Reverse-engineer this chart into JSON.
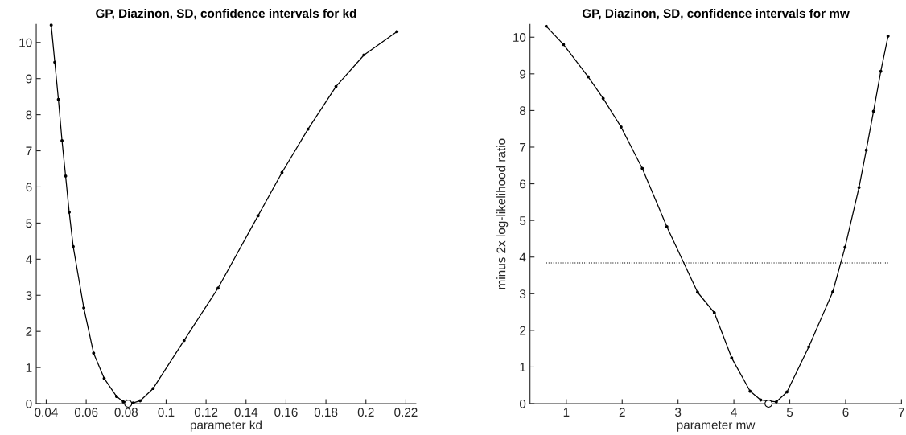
{
  "chart_data": [
    {
      "type": "line",
      "title": "GP, Diazinon, SD, confidence intervals for kd",
      "xlabel": "parameter kd",
      "xlim": [
        0.035,
        0.225
      ],
      "ylim": [
        0,
        10.5
      ],
      "xticks": [
        0.04,
        0.06,
        0.08,
        0.1,
        0.12,
        0.14,
        0.16,
        0.18,
        0.2,
        0.22
      ],
      "yticks": [
        0,
        1,
        2,
        3,
        4,
        5,
        6,
        7,
        8,
        9,
        10
      ],
      "marker": "circle",
      "line_style": "solid",
      "grid": false,
      "legend": false,
      "series": [
        {
          "color": "#000000",
          "x": [
            0.0425,
            0.0443,
            0.0461,
            0.0479,
            0.0497,
            0.0515,
            0.0535,
            0.0588,
            0.0637,
            0.069,
            0.0752,
            0.0786,
            0.0835,
            0.087,
            0.0935,
            0.109,
            0.126,
            0.146,
            0.158,
            0.171,
            0.185,
            0.199,
            0.2155
          ],
          "values": [
            10.48,
            9.45,
            8.42,
            7.28,
            6.3,
            5.3,
            4.35,
            2.65,
            1.4,
            0.7,
            0.2,
            0.05,
            0.02,
            0.08,
            0.42,
            1.75,
            3.2,
            5.2,
            6.4,
            7.6,
            8.78,
            9.65,
            10.3
          ]
        },
        {
          "type": "scatter",
          "color": "#000000",
          "x": [
            0.081
          ],
          "values": [
            0
          ]
        }
      ],
      "ref_lines": [
        {
          "axis": "y",
          "value": 3.84,
          "line_style": "dotted",
          "color": "#000000"
        }
      ]
    },
    {
      "type": "line",
      "title": "GP, Diazinon, SD, confidence intervals for mw",
      "xlabel": "parameter mw",
      "ylabel": "minus 2x log-likelihood ratio",
      "xlim": [
        0.35,
        7.0
      ],
      "ylim": [
        0,
        10.35
      ],
      "xticks": [
        1,
        2,
        3,
        4,
        5,
        6,
        7
      ],
      "yticks": [
        0,
        1,
        2,
        3,
        4,
        5,
        6,
        7,
        8,
        9,
        10
      ],
      "marker": "circle",
      "line_style": "solid",
      "grid": false,
      "legend": false,
      "series": [
        {
          "color": "#000000",
          "x": [
            0.64,
            0.95,
            1.39,
            1.66,
            1.98,
            2.36,
            2.8,
            3.35,
            3.65,
            3.96,
            4.29,
            4.48,
            4.76,
            4.95,
            5.34,
            5.77,
            5.99,
            6.24,
            6.37,
            6.5,
            6.63,
            6.76
          ],
          "values": [
            10.3,
            9.8,
            8.92,
            8.33,
            7.55,
            6.42,
            4.83,
            3.04,
            2.48,
            1.25,
            0.34,
            0.1,
            0.05,
            0.32,
            1.55,
            3.05,
            4.27,
            5.9,
            6.92,
            7.98,
            9.07,
            10.03
          ]
        },
        {
          "type": "scatter",
          "color": "#000000",
          "x": [
            4.62
          ],
          "values": [
            0
          ]
        }
      ],
      "ref_lines": [
        {
          "axis": "y",
          "value": 3.84,
          "line_style": "dotted",
          "color": "#000000"
        }
      ]
    }
  ]
}
